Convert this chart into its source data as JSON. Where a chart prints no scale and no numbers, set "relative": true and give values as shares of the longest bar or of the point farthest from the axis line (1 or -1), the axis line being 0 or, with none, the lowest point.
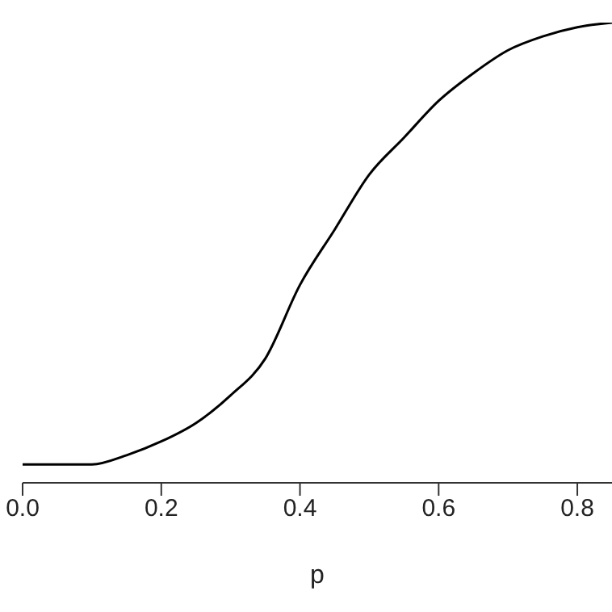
{
  "chart_data": {
    "type": "line",
    "xlabel": "p",
    "relative": true,
    "xlim": [
      0,
      0.85
    ],
    "xticks": [
      {
        "value": 0,
        "label": "0.0"
      },
      0.2,
      0.4,
      0.6,
      0.8
    ],
    "tick_labels": "x",
    "grid": false,
    "legend": false,
    "marker": "none",
    "line_style": "solid",
    "x": [
      0,
      0.1,
      0.15,
      0.2,
      0.25,
      0.3,
      0.35,
      0.4,
      0.45,
      0.5,
      0.55,
      0.6,
      0.65,
      0.7,
      0.75,
      0.8,
      0.85
    ],
    "series": [
      {
        "color": "#000000",
        "values": [
          0.04,
          0.04,
          0.06,
          0.09,
          0.13,
          0.19,
          0.27,
          0.43,
          0.55,
          0.67,
          0.75,
          0.83,
          0.89,
          0.94,
          0.97,
          0.99,
          1
        ]
      }
    ]
  }
}
